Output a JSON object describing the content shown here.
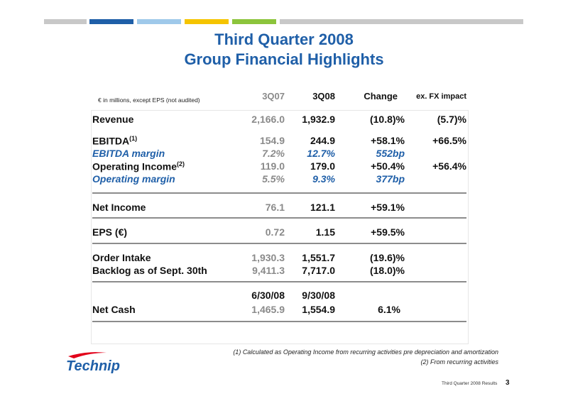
{
  "colors": {
    "stripes": [
      "#c8c8c8",
      "#1f5fa8",
      "#9fc9ea",
      "#f5c400",
      "#8cc43c",
      "#c8c8c8"
    ],
    "title": "#1f5fa8",
    "prior_year_value": "#8a8a8a"
  },
  "title_line1": "Third Quarter 2008",
  "title_line2": "Group Financial Highlights",
  "table": {
    "units_note": "€ in millions, except EPS  (not audited)",
    "headers": [
      "3Q07",
      "3Q08",
      "Change",
      "ex. FX impact"
    ],
    "rows": [
      {
        "label": "Revenue",
        "v07": "2,166.0",
        "v08": "1,932.9",
        "change": "(10.8)%",
        "fx": "(5.7)%"
      },
      {
        "label": "EBITDA",
        "sup": "(1)",
        "v07": "154.9",
        "v08": "244.9",
        "change": "+58.1%",
        "fx": "+66.5%"
      },
      {
        "label": "EBITDA margin",
        "v07": "7.2%",
        "v08": "12.7%",
        "change": "552bp",
        "fx": ""
      },
      {
        "label": "Operating Income",
        "sup": "(2)",
        "v07": "119.0",
        "v08": "179.0",
        "change": "+50.4%",
        "fx": "+56.4%"
      },
      {
        "label": "Operating margin",
        "v07": "5.5%",
        "v08": "9.3%",
        "change": "377bp",
        "fx": ""
      },
      {
        "label": "Net Income",
        "v07": "76.1",
        "v08": "121.1",
        "change": "+59.1%",
        "fx": ""
      },
      {
        "label": "EPS (€)",
        "v07": "0.72",
        "v08": "1.15",
        "change": "+59.5%",
        "fx": ""
      },
      {
        "label": "Order Intake",
        "v07": "1,930.3",
        "v08": "1,551.7",
        "change": "(19.6)%",
        "fx": ""
      },
      {
        "label": "Backlog as of Sept. 30th",
        "v07": "9,411.3",
        "v08": "7,717.0",
        "change": "(18.0)%",
        "fx": ""
      },
      {
        "label": "",
        "v07": "6/30/08",
        "v08": "9/30/08",
        "change": "",
        "fx": ""
      },
      {
        "label": "Net Cash",
        "v07": "1,465.9",
        "v08": "1,554.9",
        "change": "6.1%",
        "fx": ""
      }
    ]
  },
  "footnotes": [
    "(1) Calculated as Operating Income from recurring activities pre depreciation and amortization",
    "(2) From recurring activities"
  ],
  "logo_text": "Technip",
  "footer_label": "Third Quarter 2008 Results",
  "page_number": "3"
}
